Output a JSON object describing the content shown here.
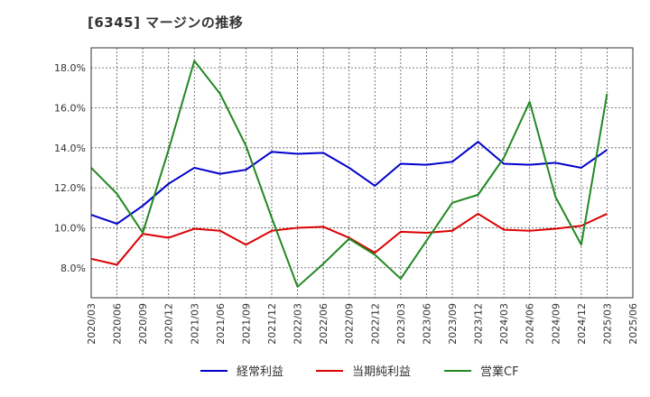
{
  "title": "[6345]  マージンの推移",
  "chart_data": {
    "type": "line",
    "x": [
      "2020/03",
      "2020/06",
      "2020/09",
      "2020/12",
      "2021/03",
      "2021/06",
      "2021/09",
      "2021/12",
      "2022/03",
      "2022/06",
      "2022/09",
      "2022/12",
      "2023/03",
      "2023/06",
      "2023/09",
      "2023/12",
      "2024/03",
      "2024/06",
      "2024/09",
      "2024/12",
      "2025/03"
    ],
    "x_ticks": [
      "2020/03",
      "2020/06",
      "2020/09",
      "2020/12",
      "2021/03",
      "2021/06",
      "2021/09",
      "2021/12",
      "2022/03",
      "2022/06",
      "2022/09",
      "2022/12",
      "2023/03",
      "2023/06",
      "2023/09",
      "2023/12",
      "2024/03",
      "2024/06",
      "2024/09",
      "2024/12",
      "2025/03",
      "2025/06"
    ],
    "y_ticks": [
      8.0,
      10.0,
      12.0,
      14.0,
      16.0,
      18.0
    ],
    "y_tick_labels": [
      "8.0%",
      "10.0%",
      "12.0%",
      "14.0%",
      "16.0%",
      "18.0%"
    ],
    "ylim": [
      6.5,
      19.0
    ],
    "grid": true,
    "legend_position": "bottom",
    "series": [
      {
        "name": "経常利益",
        "color": "#0000cc",
        "values": [
          10.65,
          10.2,
          11.1,
          12.2,
          13.0,
          12.7,
          12.9,
          13.8,
          13.7,
          13.75,
          13.0,
          12.1,
          13.2,
          13.15,
          13.3,
          14.3,
          13.2,
          13.15,
          13.25,
          13.0,
          13.9
        ]
      },
      {
        "name": "当期純利益",
        "color": "#dd0000",
        "values": [
          8.45,
          8.15,
          9.7,
          9.5,
          9.95,
          9.85,
          9.15,
          9.85,
          10.0,
          10.05,
          9.5,
          8.75,
          9.8,
          9.75,
          9.85,
          10.7,
          9.9,
          9.85,
          9.95,
          10.1,
          10.7
        ]
      },
      {
        "name": "営業CF",
        "color": "#228822",
        "values": [
          13.0,
          11.7,
          9.75,
          13.9,
          18.35,
          16.7,
          14.1,
          10.5,
          7.05,
          8.2,
          9.45,
          8.65,
          7.45,
          9.35,
          11.25,
          11.65,
          13.5,
          16.3,
          11.55,
          9.15,
          16.7
        ]
      }
    ]
  }
}
